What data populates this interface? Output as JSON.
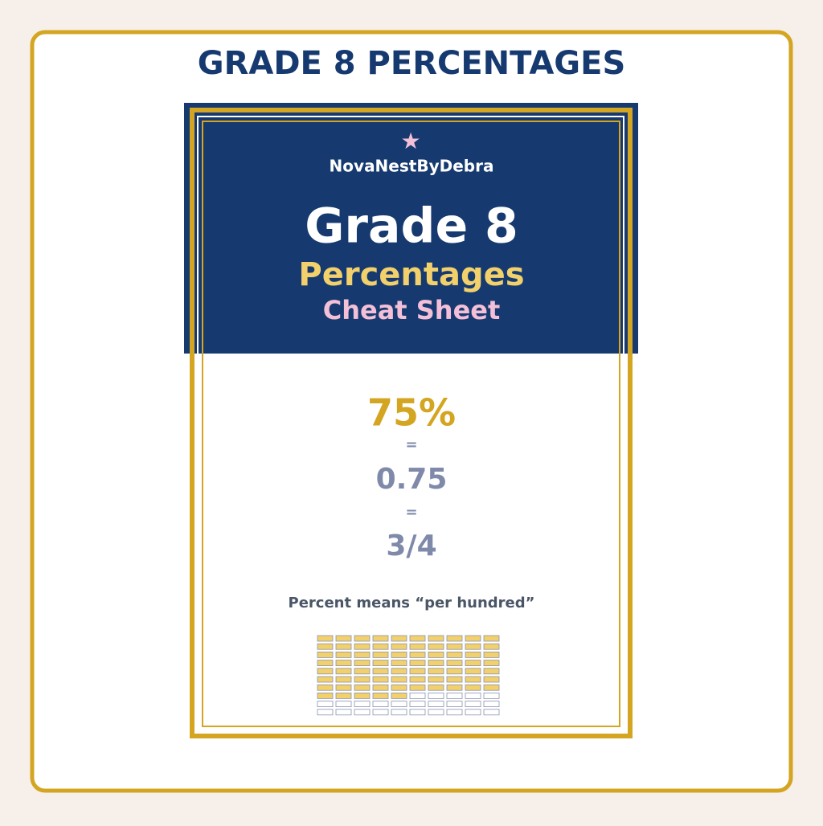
{
  "header": {
    "title": "GRADE 8 PERCENTAGES"
  },
  "card": {
    "brand": "NovaNestByDebra",
    "title": "Grade 8",
    "subtitle": "Percentages",
    "tagline": "Cheat Sheet",
    "equivalences": [
      "75%",
      "0.75",
      "3/4"
    ],
    "equals": "=",
    "caption": "Percent means “per hundred”",
    "grid": {
      "rows": 10,
      "columns": 10,
      "filled": 75
    }
  }
}
